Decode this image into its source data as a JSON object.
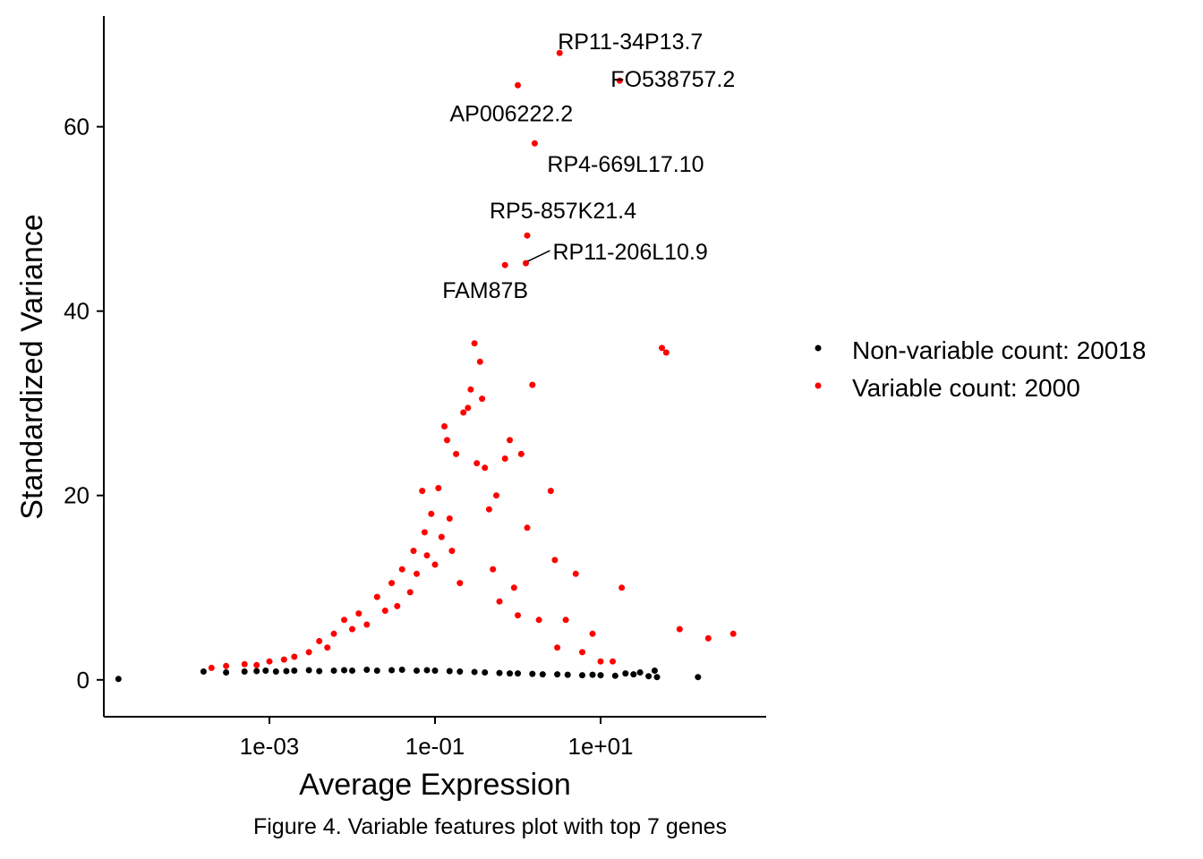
{
  "chart_data": {
    "type": "scatter",
    "xlabel": "Average Expression",
    "ylabel": "Standardized Variance",
    "x_scale": "log10",
    "xlim": [
      1e-05,
      1000
    ],
    "ylim": [
      -4,
      72
    ],
    "x_ticks": [
      {
        "value": 0.001,
        "label": "1e-03"
      },
      {
        "value": 0.1,
        "label": "1e-01"
      },
      {
        "value": 10,
        "label": "1e+01"
      }
    ],
    "y_ticks": [
      {
        "value": 0,
        "label": "0"
      },
      {
        "value": 20,
        "label": "20"
      },
      {
        "value": 40,
        "label": "40"
      },
      {
        "value": 60,
        "label": "60"
      }
    ],
    "grid": false,
    "legend_position": "right",
    "series": [
      {
        "name": "Non-variable count: 20018",
        "color": "#000000",
        "points": [
          [
            1.5e-05,
            0.1
          ],
          [
            0.00016,
            0.9
          ],
          [
            0.0003,
            0.8
          ],
          [
            0.0005,
            0.9
          ],
          [
            0.0007,
            0.95
          ],
          [
            0.0009,
            1.0
          ],
          [
            0.0012,
            0.9
          ],
          [
            0.0016,
            0.95
          ],
          [
            0.002,
            1.0
          ],
          [
            0.003,
            1.05
          ],
          [
            0.004,
            0.95
          ],
          [
            0.006,
            1.0
          ],
          [
            0.008,
            1.05
          ],
          [
            0.01,
            1.0
          ],
          [
            0.015,
            1.1
          ],
          [
            0.02,
            1.0
          ],
          [
            0.03,
            1.05
          ],
          [
            0.04,
            1.1
          ],
          [
            0.06,
            1.0
          ],
          [
            0.08,
            1.05
          ],
          [
            0.1,
            1.0
          ],
          [
            0.15,
            0.95
          ],
          [
            0.2,
            0.9
          ],
          [
            0.3,
            0.85
          ],
          [
            0.4,
            0.8
          ],
          [
            0.6,
            0.75
          ],
          [
            0.8,
            0.7
          ],
          [
            1.0,
            0.7
          ],
          [
            1.5,
            0.65
          ],
          [
            2,
            0.6
          ],
          [
            3,
            0.6
          ],
          [
            4,
            0.55
          ],
          [
            6,
            0.5
          ],
          [
            8,
            0.55
          ],
          [
            10,
            0.5
          ],
          [
            15,
            0.45
          ],
          [
            20,
            0.7
          ],
          [
            25,
            0.6
          ],
          [
            30,
            0.8
          ],
          [
            38,
            0.4
          ],
          [
            45,
            1.0
          ],
          [
            48,
            0.3
          ],
          [
            150,
            0.3
          ]
        ]
      },
      {
        "name": "Variable count: 2000",
        "color": "#ff0000",
        "points": [
          [
            0.0002,
            1.3
          ],
          [
            0.0003,
            1.5
          ],
          [
            0.0005,
            1.7
          ],
          [
            0.0007,
            1.6
          ],
          [
            0.001,
            2.0
          ],
          [
            0.0015,
            2.2
          ],
          [
            0.002,
            2.5
          ],
          [
            0.003,
            3.0
          ],
          [
            0.004,
            4.2
          ],
          [
            0.005,
            3.5
          ],
          [
            0.006,
            5.0
          ],
          [
            0.008,
            6.5
          ],
          [
            0.01,
            5.5
          ],
          [
            0.012,
            7.2
          ],
          [
            0.015,
            6.0
          ],
          [
            0.02,
            9.0
          ],
          [
            0.025,
            7.5
          ],
          [
            0.03,
            10.5
          ],
          [
            0.035,
            8.0
          ],
          [
            0.04,
            12.0
          ],
          [
            0.05,
            9.5
          ],
          [
            0.055,
            14.0
          ],
          [
            0.06,
            11.5
          ],
          [
            0.07,
            20.5
          ],
          [
            0.075,
            16.0
          ],
          [
            0.08,
            13.5
          ],
          [
            0.09,
            18.0
          ],
          [
            0.1,
            12.5
          ],
          [
            0.11,
            20.8
          ],
          [
            0.12,
            15.5
          ],
          [
            0.13,
            27.5
          ],
          [
            0.14,
            26.0
          ],
          [
            0.15,
            17.5
          ],
          [
            0.16,
            14.0
          ],
          [
            0.18,
            24.5
          ],
          [
            0.2,
            10.5
          ],
          [
            0.22,
            29.0
          ],
          [
            0.25,
            29.5
          ],
          [
            0.27,
            31.5
          ],
          [
            0.3,
            36.5
          ],
          [
            0.32,
            23.5
          ],
          [
            0.35,
            34.5
          ],
          [
            0.37,
            30.5
          ],
          [
            0.4,
            23.0
          ],
          [
            0.45,
            18.5
          ],
          [
            0.5,
            12.0
          ],
          [
            0.55,
            20.0
          ],
          [
            0.6,
            8.5
          ],
          [
            0.7,
            24.0
          ],
          [
            0.8,
            26.0
          ],
          [
            0.9,
            10.0
          ],
          [
            1.0,
            7.0
          ],
          [
            1.1,
            24.5
          ],
          [
            1.3,
            16.5
          ],
          [
            1.5,
            32.0
          ],
          [
            1.8,
            6.5
          ],
          [
            2.5,
            20.5
          ],
          [
            2.8,
            13.0
          ],
          [
            3,
            3.5
          ],
          [
            3.8,
            6.5
          ],
          [
            5,
            11.5
          ],
          [
            6,
            3.0
          ],
          [
            8,
            5.0
          ],
          [
            10,
            2.0
          ],
          [
            14,
            2.0
          ],
          [
            18,
            10.0
          ],
          [
            55,
            36.0
          ],
          [
            62,
            35.5
          ],
          [
            90,
            5.5
          ],
          [
            200,
            4.5
          ],
          [
            400,
            5.0
          ],
          [
            1.0,
            64.5
          ],
          [
            1.6,
            58.2
          ],
          [
            1.3,
            48.2
          ],
          [
            0.7,
            45.0
          ],
          [
            1.25,
            45.2
          ],
          [
            3.2,
            68.0
          ],
          [
            17,
            65.0
          ]
        ]
      }
    ],
    "annotations": [
      {
        "text": "RP11-34P13.7",
        "x": 3.2,
        "y": 68.0
      },
      {
        "text": "FO538757.2",
        "x": 17,
        "y": 65.0
      },
      {
        "text": "AP006222.2",
        "x": 1.0,
        "y": 64.5
      },
      {
        "text": "RP4-669L17.10",
        "x": 1.6,
        "y": 58.2
      },
      {
        "text": "RP5-857K21.4",
        "x": 1.3,
        "y": 48.2
      },
      {
        "text": "RP11-206L10.9",
        "x": 1.25,
        "y": 45.2
      },
      {
        "text": "FAM87B",
        "x": 0.7,
        "y": 45.0
      }
    ]
  },
  "legend": {
    "items": [
      {
        "label": "Non-variable count: 20018",
        "color": "#000000"
      },
      {
        "label": "Variable count: 2000",
        "color": "#ff0000"
      }
    ]
  },
  "caption": "Figure 4. Variable features plot with top 7 genes"
}
